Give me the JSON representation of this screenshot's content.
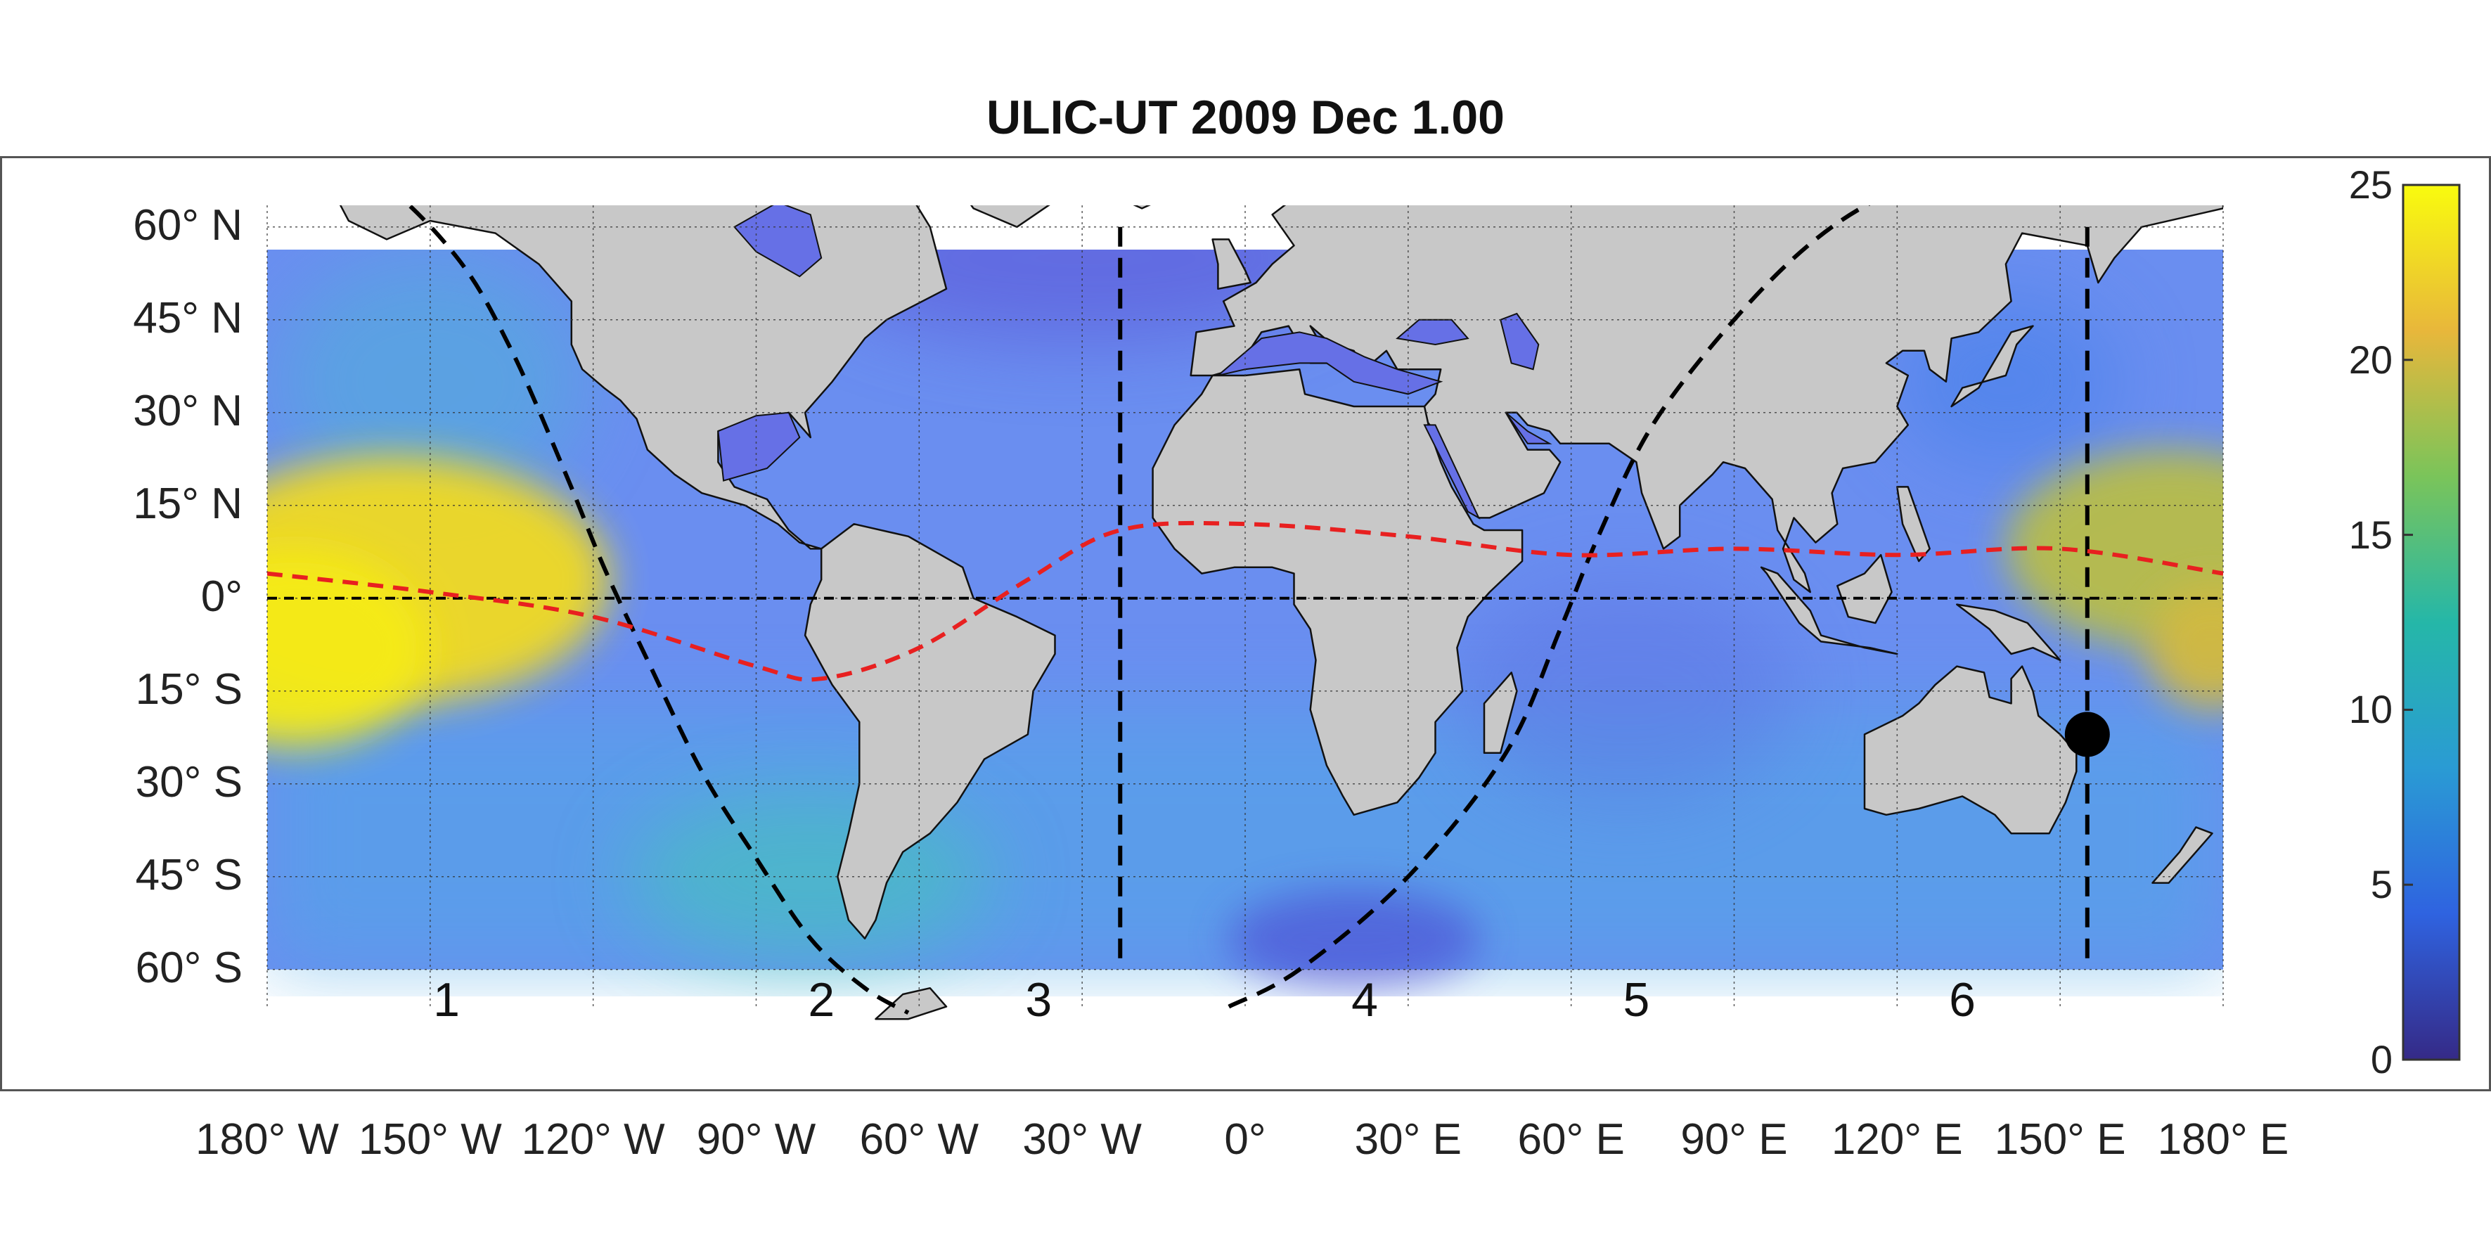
{
  "title": "ULIC-UT 2009 Dec  1.00",
  "lat_labels": [
    {
      "lat": 60,
      "text": "60° N"
    },
    {
      "lat": 45,
      "text": "45° N"
    },
    {
      "lat": 30,
      "text": "30° N"
    },
    {
      "lat": 15,
      "text": "15° N"
    },
    {
      "lat": 0,
      "text": "0°"
    },
    {
      "lat": -15,
      "text": "15° S"
    },
    {
      "lat": -30,
      "text": "30° S"
    },
    {
      "lat": -45,
      "text": "45° S"
    },
    {
      "lat": -60,
      "text": "60° S"
    }
  ],
  "lon_labels": [
    {
      "lon": -180,
      "text": "180° W"
    },
    {
      "lon": -150,
      "text": "150° W"
    },
    {
      "lon": -120,
      "text": "120° W"
    },
    {
      "lon": -90,
      "text": "90° W"
    },
    {
      "lon": -60,
      "text": "60° W"
    },
    {
      "lon": -30,
      "text": "30° W"
    },
    {
      "lon": 0,
      "text": "0°"
    },
    {
      "lon": 30,
      "text": "30° E"
    },
    {
      "lon": 60,
      "text": "60° E"
    },
    {
      "lon": 90,
      "text": "90° E"
    },
    {
      "lon": 120,
      "text": "120° E"
    },
    {
      "lon": 150,
      "text": "150° E"
    },
    {
      "lon": 180,
      "text": "180° E"
    }
  ],
  "zone_labels": [
    {
      "lon": -147,
      "text": "1"
    },
    {
      "lon": -78,
      "text": "2"
    },
    {
      "lon": -38,
      "text": "3"
    },
    {
      "lon": 22,
      "text": "4"
    },
    {
      "lon": 72,
      "text": "5"
    },
    {
      "lon": 132,
      "text": "6"
    }
  ],
  "colorbar": {
    "min": 0,
    "max": 25,
    "ticks": [
      0,
      5,
      10,
      15,
      20,
      25
    ],
    "colors": [
      "#352a87",
      "#2f63e0",
      "#2a9bd4",
      "#25b7a8",
      "#7ac45a",
      "#e8b73b",
      "#f9fb0e"
    ]
  },
  "map": {
    "lon_range": [
      -180,
      180
    ],
    "lat_range": [
      -68,
      76
    ],
    "data_lat_range": [
      -60,
      68
    ],
    "land_color": "#c8c8c8",
    "ocean_base_color": "#6a8ef0",
    "equator_lat": 0,
    "subsolar_meridian": "solid",
    "terminator_color": "#000000",
    "subsolar_path_color": "#e82020",
    "meridian_lons": [
      -23,
      155
    ],
    "subsolar_point": {
      "lon": 155,
      "lat": -22
    },
    "hot_spots": [
      {
        "lon": -157,
        "lat": 3,
        "value": 23,
        "rlon": 40,
        "rlat": 20
      },
      {
        "lon": -175,
        "lat": -8,
        "value": 24,
        "rlon": 25,
        "rlat": 16
      },
      {
        "lon": 170,
        "lat": 8,
        "value": 19,
        "rlon": 30,
        "rlat": 16
      },
      {
        "lon": 178,
        "lat": -8,
        "value": 20,
        "rlon": 12,
        "rlat": 10
      }
    ]
  },
  "chart_data": {
    "type": "heatmap",
    "title": "ULIC-UT 2009 Dec  1.00",
    "xlabel": "",
    "ylabel": "",
    "xlim": [
      -180,
      180
    ],
    "ylim": [
      -60,
      60
    ],
    "colorbar_range": [
      0,
      25
    ],
    "colorbar_ticks": [
      0,
      5,
      10,
      15,
      20,
      25
    ],
    "subsolar_point": {
      "lon": 155,
      "lat": -22
    },
    "subsolar_track": {
      "lon": [
        -180,
        -150,
        -120,
        -90,
        -78,
        -60,
        -40,
        -23,
        0,
        30,
        60,
        90,
        120,
        150,
        180
      ],
      "lat": [
        4,
        1,
        -3,
        -11,
        -13,
        -8,
        3,
        11,
        12,
        10,
        7,
        8,
        7,
        8,
        4
      ]
    },
    "terminator_west": {
      "lon": [
        -178,
        -160,
        -145,
        -135,
        -125,
        -118,
        -110,
        -100,
        -90,
        -80,
        -70,
        -62
      ],
      "lat": [
        76,
        68,
        55,
        40,
        20,
        5,
        -10,
        -28,
        -42,
        -55,
        -63,
        -67
      ]
    },
    "terminator_east": {
      "lon": [
        -3,
        10,
        30,
        48,
        58,
        65,
        75,
        90,
        105,
        120,
        140,
        158
      ],
      "lat": [
        -66,
        -60,
        -45,
        -25,
        -5,
        10,
        28,
        45,
        58,
        66,
        72,
        76
      ]
    }
  }
}
